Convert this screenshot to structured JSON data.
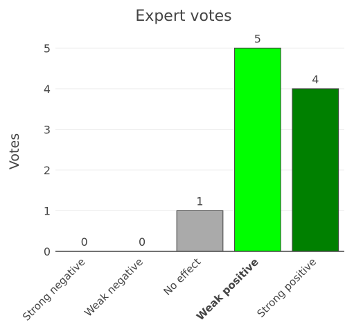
{
  "chart_data": {
    "type": "bar",
    "title": "Expert votes",
    "xlabel": "",
    "ylabel": "Votes",
    "categories": [
      "Strong negative",
      "Weak negative",
      "No effect",
      "Weak positive",
      "Strong positive"
    ],
    "highlighted_category": "Weak positive",
    "values": [
      0,
      0,
      1,
      5,
      4
    ],
    "colors": [
      "#aaaaaa",
      "#aaaaaa",
      "#aaaaaa",
      "#00ff00",
      "#008000"
    ],
    "ylim": [
      0,
      5.5
    ],
    "yticks": [
      0,
      1,
      2,
      3,
      4,
      5
    ],
    "grid": true,
    "legend": false
  }
}
